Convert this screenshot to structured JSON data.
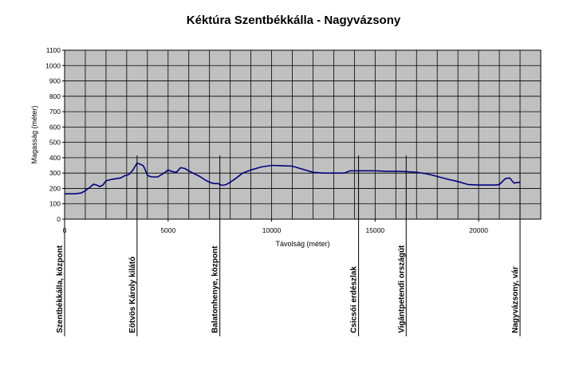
{
  "chart_data": {
    "type": "line",
    "title": "Kéktúra Szentbékkálla - Nagyvázsony",
    "xlabel": "Távolság (méter)",
    "ylabel": "Magasság (méter)",
    "xlim": [
      0,
      23000
    ],
    "ylim": [
      0,
      1100
    ],
    "x_ticks": [
      0,
      5000,
      10000,
      15000,
      20000
    ],
    "y_ticks": [
      0,
      100,
      200,
      300,
      400,
      500,
      600,
      700,
      800,
      900,
      1000,
      1100
    ],
    "x_grid_step": 1000,
    "grid": true,
    "plot_background": "#c0c0c0",
    "line_color": "#000080",
    "series": [
      {
        "x": [
          0,
          200,
          500,
          800,
          1000,
          1200,
          1400,
          1550,
          1700,
          1850,
          2000,
          2300,
          2700,
          2900,
          3100,
          3300,
          3500,
          3650,
          3800,
          3900,
          4000,
          4200,
          4500,
          4800,
          5000,
          5200,
          5400,
          5600,
          5800,
          6000,
          6200,
          6500,
          6800,
          7000,
          7200,
          7400,
          7600,
          7800,
          8000,
          8300,
          8600,
          9000,
          9500,
          10000,
          10500,
          11000,
          11500,
          12000,
          12500,
          13000,
          13500,
          13800,
          14500,
          15000,
          15500,
          16000,
          16500,
          17000,
          17500,
          18000,
          18500,
          19000,
          19500,
          20000,
          20500,
          20800,
          21000,
          21300,
          21500,
          21700,
          22000
        ],
        "y": [
          165,
          165,
          165,
          170,
          185,
          205,
          228,
          222,
          212,
          222,
          250,
          260,
          268,
          283,
          290,
          320,
          365,
          358,
          348,
          320,
          285,
          275,
          275,
          300,
          320,
          310,
          305,
          335,
          330,
          315,
          300,
          280,
          255,
          240,
          232,
          232,
          220,
          225,
          240,
          268,
          300,
          320,
          340,
          350,
          348,
          345,
          325,
          305,
          300,
          300,
          300,
          315,
          315,
          315,
          312,
          312,
          310,
          305,
          295,
          278,
          260,
          245,
          225,
          222,
          222,
          222,
          225,
          265,
          268,
          235,
          240
        ]
      }
    ],
    "markers": [
      {
        "x": 0,
        "label": "Szentbékkálla, központ"
      },
      {
        "x": 3500,
        "label": "Eötvös Károly kilátó"
      },
      {
        "x": 7500,
        "label": "Balatonhenye, központ"
      },
      {
        "x": 14200,
        "label": "Csicsói erdészlak"
      },
      {
        "x": 16500,
        "label": "Vigántpetendi országút"
      },
      {
        "x": 22000,
        "label": "Nagyvázsony, vár"
      }
    ]
  }
}
